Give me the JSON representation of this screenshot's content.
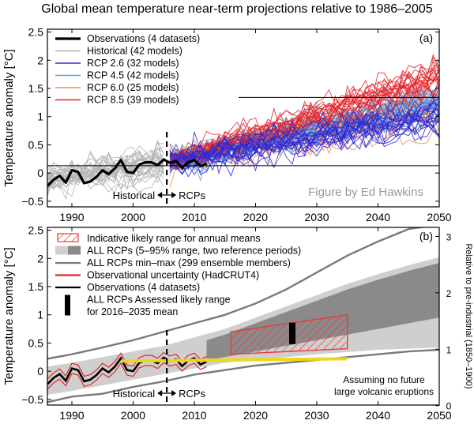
{
  "title": "Global mean temperature near-term projections relative to 1986–2005",
  "colors": {
    "observations": "#000000",
    "historical": "#b3b3b3",
    "rcp26": "#2a2ad8",
    "rcp45": "#5aa5e6",
    "rcp60": "#f0884a",
    "rcp85": "#e5252a",
    "likely_hatch": "#ea3a3a",
    "range_light": "#cfcfcf",
    "range_dark": "#8a8a8a",
    "minmax": "#7a7a7a",
    "reference_line": "#f0d51a"
  },
  "chart_data": [
    {
      "type": "line",
      "panel": "(a)",
      "ylabel": "Temperature anomaly [°C]",
      "xlim": [
        1986,
        2050
      ],
      "ylim": [
        -0.6,
        2.55
      ],
      "xticks": [
        1990,
        2000,
        2010,
        2020,
        2030,
        2040,
        2050
      ],
      "yticks": [
        -0.5,
        0,
        0.5,
        1,
        1.5,
        2,
        2.5
      ],
      "ytick_labels": [
        "−0.5",
        "0",
        "0.5",
        "1",
        "1.5",
        "2",
        "2.5"
      ],
      "hlines": [
        0.13,
        1.34
      ],
      "divider_year": 2005.5,
      "annotations": [
        "Historical",
        "RCPs",
        "Figure by Ed Hawkins"
      ],
      "legend": [
        {
          "label": "Observations (4 datasets)",
          "color": "#000000"
        },
        {
          "label": "Historical (42 models)",
          "color": "#b3b3b3"
        },
        {
          "label": "RCP 2.6 (32 models)",
          "color": "#2a2ad8"
        },
        {
          "label": "RCP 4.5 (42 models)",
          "color": "#5aa5e6"
        },
        {
          "label": "RCP 6.0 (25 models)",
          "color": "#f0884a"
        },
        {
          "label": "RCP 8.5 (39 models)",
          "color": "#e5252a"
        }
      ],
      "legend_position": "top-left",
      "observations": {
        "x": [
          1986,
          1987,
          1988,
          1989,
          1990,
          1991,
          1992,
          1993,
          1994,
          1995,
          1996,
          1997,
          1998,
          1999,
          2000,
          2001,
          2002,
          2003,
          2004,
          2005,
          2006,
          2007,
          2008,
          2009,
          2010,
          2011,
          2012
        ],
        "y": [
          -0.23,
          -0.12,
          -0.05,
          -0.17,
          0.05,
          0.02,
          -0.18,
          -0.15,
          -0.07,
          0.05,
          -0.02,
          0.08,
          0.23,
          0.02,
          0.0,
          0.15,
          0.19,
          0.19,
          0.14,
          0.24,
          0.18,
          0.21,
          0.09,
          0.19,
          0.23,
          0.12,
          0.17
        ]
      },
      "ensembles": [
        {
          "name": "Historical",
          "count": 42,
          "x_range": [
            1986,
            2005
          ],
          "start": -0.1,
          "end": 0.2,
          "spread": 0.18
        },
        {
          "name": "RCP 2.6",
          "count": 32,
          "x_range": [
            2006,
            2050
          ],
          "start": 0.2,
          "end": 1.0,
          "spread": 0.3
        },
        {
          "name": "RCP 4.5",
          "count": 42,
          "x_range": [
            2006,
            2050
          ],
          "start": 0.2,
          "end": 1.3,
          "spread": 0.3
        },
        {
          "name": "RCP 6.0",
          "count": 25,
          "x_range": [
            2006,
            2050
          ],
          "start": 0.2,
          "end": 1.1,
          "spread": 0.3
        },
        {
          "name": "RCP 8.5",
          "count": 39,
          "x_range": [
            2006,
            2050
          ],
          "start": 0.2,
          "end": 1.75,
          "spread": 0.35
        }
      ]
    },
    {
      "type": "area",
      "panel": "(b)",
      "ylabel": "Temperature anomaly [°C]",
      "ylabel_right": "Relative to pre-industrial (1850–1900)",
      "xlim": [
        1986,
        2050
      ],
      "ylim": [
        -0.6,
        2.55
      ],
      "xticks": [
        1990,
        2000,
        2010,
        2020,
        2030,
        2040,
        2050
      ],
      "yticks": [
        -0.5,
        0,
        0.5,
        1,
        1.5,
        2,
        2.5
      ],
      "ytick_labels": [
        "−0.5",
        "0",
        "0.5",
        "1",
        "1.5",
        "2",
        "2.5"
      ],
      "right_ticks": [
        0,
        1,
        2,
        3
      ],
      "right_offset": 0.61,
      "divider_year": 2005.5,
      "annotations": [
        "Historical",
        "RCPs",
        "Assuming no future",
        "large volcanic eruptions"
      ],
      "legend": [
        {
          "label": "Indicative likely range for annual means",
          "kind": "hatch",
          "color": "#ea3a3a"
        },
        {
          "label": "ALL RCPs (5–95% range, two reference periods)",
          "kind": "patch",
          "color": "#cfcfcf"
        },
        {
          "label": "ALL RCPs min–max (299 ensemble members)",
          "kind": "line",
          "color": "#7a7a7a"
        },
        {
          "label": "Observational uncertainty (HadCRUT4)",
          "kind": "line",
          "color": "#e5252a"
        },
        {
          "label": "Observations (4 datasets)",
          "kind": "line",
          "color": "#000000"
        },
        {
          "label": "ALL RCPs Assessed likely range",
          "kind": "bar",
          "color": "#000000"
        },
        {
          "label": "for 2016–2035 mean",
          "kind": "text",
          "color": "#000000"
        }
      ],
      "legend_position": "top-left",
      "range_light": {
        "x": [
          1986,
          1990,
          1995,
          2000,
          2005,
          2010,
          2015,
          2020,
          2025,
          2030,
          2035,
          2040,
          2045,
          2050
        ],
        "low": [
          -0.42,
          -0.35,
          -0.25,
          -0.15,
          -0.05,
          0.05,
          0.15,
          0.2,
          0.25,
          0.3,
          0.34,
          0.38,
          0.4,
          0.42
        ],
        "high": [
          0.08,
          0.15,
          0.25,
          0.35,
          0.45,
          0.6,
          0.75,
          0.95,
          1.15,
          1.35,
          1.55,
          1.72,
          1.88,
          2.02
        ]
      },
      "range_dark": {
        "x": [
          2012,
          2015,
          2020,
          2025,
          2030,
          2035,
          2040,
          2045,
          2050
        ],
        "low": [
          0.2,
          0.25,
          0.35,
          0.45,
          0.55,
          0.65,
          0.75,
          0.85,
          0.95
        ],
        "high": [
          0.55,
          0.65,
          0.85,
          1.05,
          1.25,
          1.45,
          1.62,
          1.78,
          1.92
        ]
      },
      "minmax_high": {
        "x": [
          1986,
          1990,
          1995,
          2000,
          2005,
          2010,
          2015,
          2020,
          2025,
          2030,
          2035,
          2040,
          2045,
          2050
        ],
        "y": [
          0.22,
          0.3,
          0.42,
          0.55,
          0.7,
          0.85,
          1.0,
          1.2,
          1.45,
          1.75,
          2.05,
          2.3,
          2.52,
          2.6
        ]
      },
      "minmax_low": {
        "x": [
          1986,
          1990,
          1995,
          2000,
          2005,
          2010,
          2015,
          2020,
          2025,
          2030,
          2035,
          2040,
          2045,
          2050
        ],
        "y": [
          -0.55,
          -0.45,
          -0.4,
          -0.28,
          -0.18,
          -0.06,
          0.02,
          0.1,
          0.15,
          0.2,
          0.25,
          0.3,
          0.35,
          0.38
        ]
      },
      "likely_range": {
        "x": [
          2016,
          2035
        ],
        "low_start": 0.3,
        "low_end": 0.4,
        "high_start": 0.7,
        "high_end": 1.0
      },
      "assessed_likely_mean": {
        "year": 2026,
        "low": 0.48,
        "high": 0.86
      },
      "reference_line": {
        "x": [
          1998,
          2035
        ],
        "y": [
          0.18,
          0.22
        ]
      }
    }
  ]
}
